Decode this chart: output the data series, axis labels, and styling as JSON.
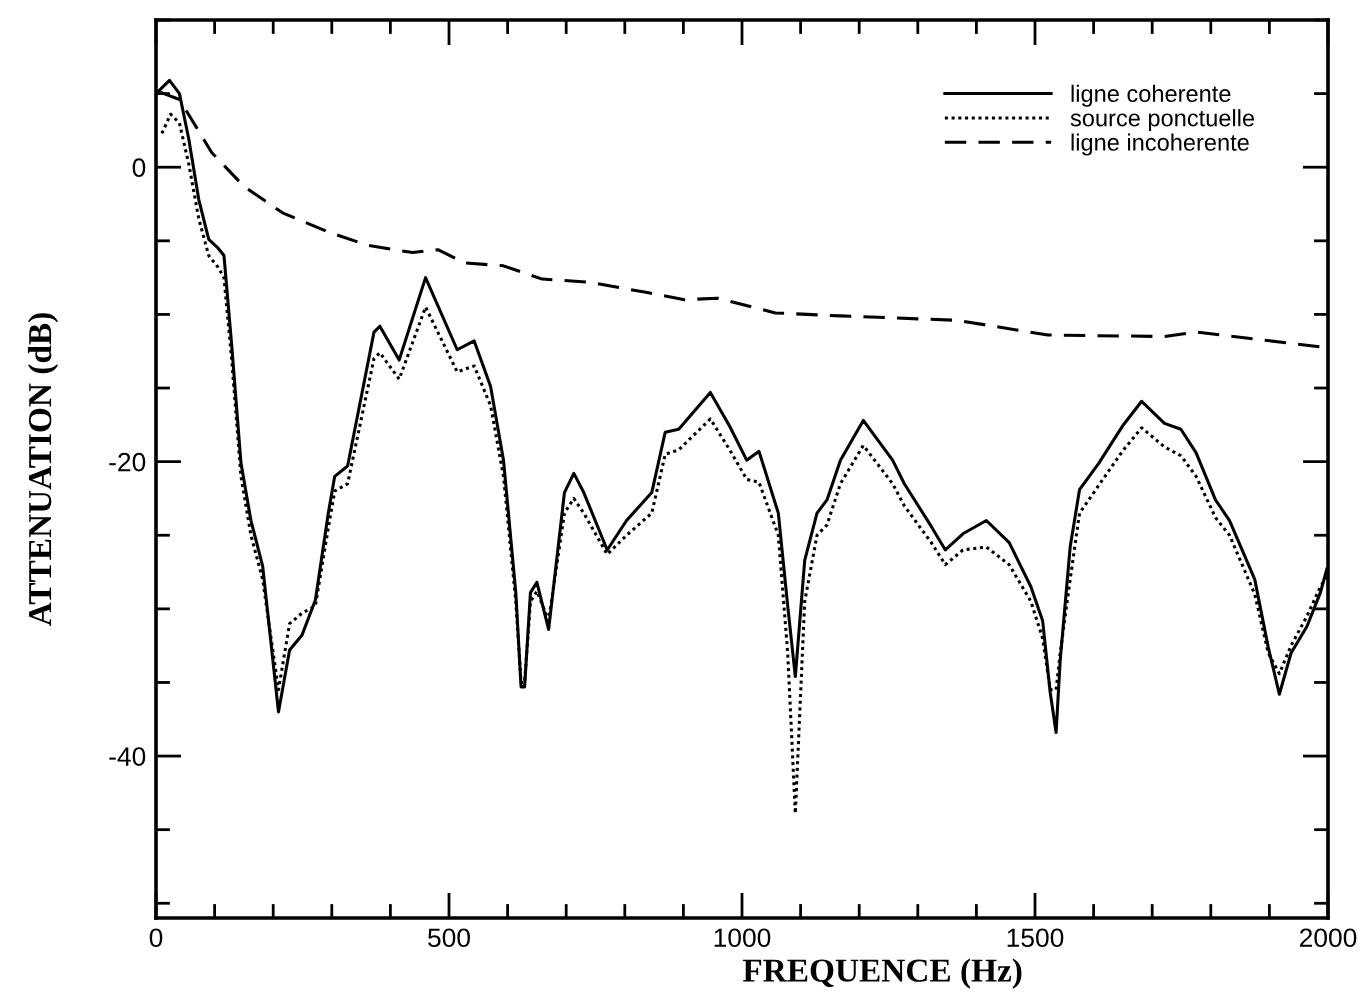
{
  "chart_data": {
    "type": "line",
    "xlabel": "FREQUENCE (Hz)",
    "ylabel": "ATTENUATION (dB)",
    "xlim": [
      0,
      2000
    ],
    "ylim": [
      -51,
      10
    ],
    "xticks": [
      0,
      {
        "value": 100,
        "label": null
      },
      {
        "value": 200,
        "label": null
      },
      {
        "value": 300,
        "label": null
      },
      {
        "value": 400,
        "label": null
      },
      500,
      {
        "value": 600,
        "label": null
      },
      {
        "value": 700,
        "label": null
      },
      {
        "value": 800,
        "label": null
      },
      {
        "value": 900,
        "label": null
      },
      1000,
      {
        "value": 1100,
        "label": null
      },
      {
        "value": 1200,
        "label": null
      },
      {
        "value": 1300,
        "label": null
      },
      {
        "value": 1400,
        "label": null
      },
      1500,
      {
        "value": 1600,
        "label": null
      },
      {
        "value": 1700,
        "label": null
      },
      {
        "value": 1800,
        "label": null
      },
      {
        "value": 1900,
        "label": null
      },
      2000
    ],
    "yticks": [
      {
        "value": -50,
        "label": null
      },
      {
        "value": -45,
        "label": null
      },
      -40,
      {
        "value": -35,
        "label": null
      },
      {
        "value": -30,
        "label": null
      },
      {
        "value": -25,
        "label": null
      },
      -20,
      {
        "value": -15,
        "label": null
      },
      {
        "value": -10,
        "label": null
      },
      {
        "value": -5,
        "label": null
      },
      0,
      {
        "value": 5,
        "label": null
      },
      {
        "value": 10,
        "label": null
      }
    ],
    "grid": false,
    "legend": "top right",
    "marker": "none",
    "series": [
      {
        "name": "ligne coherente",
        "color": "#000000",
        "line_style": "solid",
        "x": [
          0,
          23,
          40,
          56,
          73,
          90,
          106,
          116,
          129,
          145,
          162,
          182,
          209,
          228,
          249,
          272,
          294,
          305,
          327,
          372,
          382,
          415,
          460,
          514,
          543,
          571,
          593,
          614,
          623,
          629,
          639,
          650,
          670,
          697,
          713,
          730,
          770,
          803,
          846,
          869,
          892,
          946,
          979,
          1008,
          1029,
          1062,
          1078,
          1091,
          1107,
          1128,
          1145,
          1168,
          1207,
          1257,
          1277,
          1323,
          1347,
          1377,
          1417,
          1456,
          1493,
          1513,
          1526,
          1536,
          1543,
          1560,
          1576,
          1609,
          1649,
          1682,
          1721,
          1749,
          1775,
          1808,
          1832,
          1875,
          1898,
          1917,
          1937,
          1964,
          1987,
          1998
        ],
        "values": [
          5.0,
          5.9,
          5.0,
          1.9,
          -2.2,
          -4.9,
          -5.5,
          -6.0,
          -12,
          -20.1,
          -24,
          -27.1,
          -37,
          -32.8,
          -31.8,
          -29.4,
          -23.5,
          -21,
          -20.3,
          -11.2,
          -10.8,
          -13.1,
          -7.5,
          -12.4,
          -11.8,
          -14.9,
          -19.9,
          -28.9,
          -35.3,
          -35.3,
          -28.9,
          -28.2,
          -31.4,
          -22.1,
          -20.8,
          -22.1,
          -26.0,
          -24,
          -22.1,
          -18,
          -17.8,
          -15.3,
          -17.6,
          -19.9,
          -19.3,
          -23.5,
          -29.8,
          -34.6,
          -26.7,
          -23.5,
          -22.6,
          -19.9,
          -17.2,
          -19.9,
          -21.5,
          -24.4,
          -26.0,
          -24.9,
          -24.0,
          -25.5,
          -28.5,
          -30.8,
          -35.7,
          -38.4,
          -33.5,
          -25.8,
          -21.9,
          -20.1,
          -17.6,
          -15.9,
          -17.4,
          -17.8,
          -19.4,
          -22.6,
          -24,
          -28,
          -32.6,
          -35.8,
          -33,
          -31.2,
          -28.9,
          -27.3
        ]
      },
      {
        "name": "source ponctuelle",
        "color": "#000000",
        "line_style": "dotted",
        "x": [
          10,
          25,
          40,
          56,
          73,
          90,
          106,
          116,
          129,
          145,
          162,
          182,
          209,
          228,
          249,
          272,
          294,
          305,
          327,
          372,
          382,
          415,
          460,
          514,
          543,
          571,
          593,
          614,
          623,
          629,
          639,
          650,
          670,
          697,
          713,
          730,
          770,
          803,
          846,
          869,
          892,
          946,
          979,
          1008,
          1029,
          1062,
          1078,
          1091,
          1107,
          1128,
          1145,
          1168,
          1207,
          1257,
          1277,
          1323,
          1347,
          1377,
          1417,
          1456,
          1493,
          1513,
          1526,
          1536,
          1543,
          1560,
          1576,
          1609,
          1649,
          1682,
          1721,
          1749,
          1775,
          1808,
          1832,
          1875,
          1898,
          1917,
          1937,
          1964,
          1987,
          1998
        ],
        "values": [
          2.3,
          3.6,
          3.0,
          0.2,
          -3.5,
          -6.0,
          -6.8,
          -7.5,
          -13,
          -21,
          -25,
          -28,
          -35.5,
          -31,
          -30.3,
          -29.8,
          -24.5,
          -22,
          -21.5,
          -13.0,
          -12.6,
          -14.4,
          -9.5,
          -13.9,
          -13.5,
          -16.2,
          -21,
          -29.5,
          -35,
          -35,
          -29.5,
          -28.8,
          -30.8,
          -23.5,
          -22.5,
          -23.5,
          -26.3,
          -25,
          -23.5,
          -19.5,
          -19.2,
          -17.1,
          -19.2,
          -21.2,
          -21.4,
          -25,
          -33,
          -43.9,
          -29.5,
          -25,
          -24.3,
          -21.5,
          -18.9,
          -21.5,
          -23,
          -25.5,
          -27.0,
          -26.0,
          -25.8,
          -27.0,
          -29.5,
          -32,
          -35.5,
          -35.5,
          -33,
          -28,
          -23.5,
          -21.6,
          -19.3,
          -17.7,
          -19.0,
          -19.6,
          -21,
          -23.8,
          -25,
          -29,
          -33,
          -34.4,
          -32.5,
          -30.5,
          -28.5,
          -27.8
        ]
      },
      {
        "name": "ligne incoherente",
        "color": "#000000",
        "line_style": "dashed",
        "x": [
          7,
          40,
          95,
          150,
          216,
          294,
          361,
          438,
          481,
          527,
          593,
          659,
          737,
          836,
          902,
          958,
          1057,
          1168,
          1367,
          1522,
          1721,
          1775,
          1987,
          2000
        ],
        "values": [
          5.1,
          4.6,
          1.0,
          -1.3,
          -3.1,
          -4.4,
          -5.3,
          -5.8,
          -5.6,
          -6.5,
          -6.7,
          -7.6,
          -7.8,
          -8.5,
          -9.0,
          -8.9,
          -9.9,
          -10.1,
          -10.4,
          -11.4,
          -11.5,
          -11.2,
          -12.2,
          -12.2
        ]
      }
    ]
  }
}
